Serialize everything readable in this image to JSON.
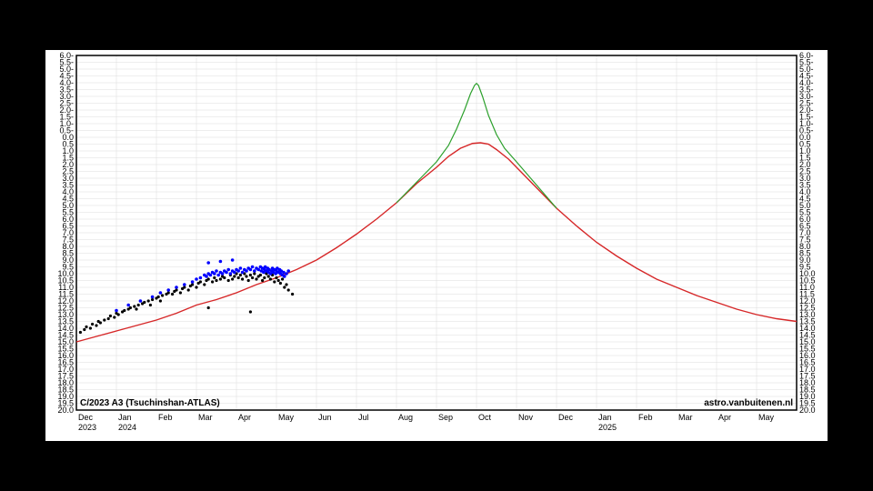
{
  "chart": {
    "type": "scatter+line",
    "title": "C/2023 A3 (Tsuchinshan-ATLAS)",
    "credit": "astro.vanbuitenen.nl",
    "background_color": "#ffffff",
    "page_background": "#000000",
    "plot_border_color": "#000000",
    "grid_color": "#dcdcdc",
    "font_family": "Arial",
    "tick_fontsize": 9,
    "footer_fontsize": 10,
    "y_axis": {
      "min": -6.0,
      "max": 20.0,
      "inverted": true,
      "tick_step": 0.5,
      "ticks": [
        -6.0,
        -5.5,
        -5.0,
        -4.5,
        -4.0,
        -3.5,
        -3.0,
        -2.5,
        -2.0,
        -1.5,
        -1.0,
        -0.5,
        0.0,
        0.5,
        1.0,
        1.5,
        2.0,
        2.5,
        3.0,
        3.5,
        4.0,
        4.5,
        5.0,
        5.5,
        6.0,
        6.5,
        7.0,
        7.5,
        8.0,
        8.5,
        9.0,
        9.5,
        10.0,
        10.5,
        11.0,
        11.5,
        12.0,
        12.5,
        13.0,
        13.5,
        14.0,
        14.5,
        15.0,
        15.5,
        16.0,
        16.5,
        17.0,
        17.5,
        18.0,
        18.5,
        19.0,
        19.5,
        20.0
      ]
    },
    "x_axis": {
      "months": [
        "Dec",
        "Jan",
        "Feb",
        "Mar",
        "Apr",
        "May",
        "Jun",
        "Jul",
        "Aug",
        "Sep",
        "Oct",
        "Nov",
        "Dec",
        "Jan",
        "Feb",
        "Mar",
        "Apr",
        "May"
      ],
      "year_labels": [
        {
          "at_month_index": 0,
          "text": "2023"
        },
        {
          "at_month_index": 1,
          "text": "2024"
        },
        {
          "at_month_index": 13,
          "text": "2025"
        }
      ]
    },
    "curves": {
      "red": {
        "color": "#d62728",
        "width": 1.4,
        "points": [
          [
            0.0,
            15.0
          ],
          [
            0.5,
            14.6
          ],
          [
            1.0,
            14.2
          ],
          [
            1.5,
            13.8
          ],
          [
            2.0,
            13.4
          ],
          [
            2.5,
            12.9
          ],
          [
            3.0,
            12.3
          ],
          [
            3.5,
            11.9
          ],
          [
            4.0,
            11.4
          ],
          [
            4.5,
            10.8
          ],
          [
            5.0,
            10.3
          ],
          [
            5.5,
            9.7
          ],
          [
            6.0,
            9.0
          ],
          [
            6.5,
            8.1
          ],
          [
            7.0,
            7.1
          ],
          [
            7.5,
            6.0
          ],
          [
            8.0,
            4.8
          ],
          [
            8.5,
            3.4
          ],
          [
            9.0,
            2.2
          ],
          [
            9.3,
            1.4
          ],
          [
            9.6,
            0.8
          ],
          [
            9.9,
            0.45
          ],
          [
            10.1,
            0.4
          ],
          [
            10.3,
            0.5
          ],
          [
            10.5,
            0.9
          ],
          [
            10.8,
            1.6
          ],
          [
            11.1,
            2.5
          ],
          [
            11.5,
            3.7
          ],
          [
            12.0,
            5.2
          ],
          [
            12.5,
            6.5
          ],
          [
            13.0,
            7.7
          ],
          [
            13.5,
            8.7
          ],
          [
            14.0,
            9.6
          ],
          [
            14.5,
            10.4
          ],
          [
            15.0,
            11.0
          ],
          [
            15.5,
            11.6
          ],
          [
            16.0,
            12.1
          ],
          [
            16.5,
            12.6
          ],
          [
            17.0,
            13.0
          ],
          [
            17.5,
            13.3
          ],
          [
            18.0,
            13.5
          ]
        ]
      },
      "green": {
        "color": "#2ca02c",
        "width": 1.2,
        "points": [
          [
            8.0,
            4.8
          ],
          [
            8.5,
            3.3
          ],
          [
            9.0,
            1.8
          ],
          [
            9.3,
            0.6
          ],
          [
            9.5,
            -0.6
          ],
          [
            9.7,
            -2.0
          ],
          [
            9.85,
            -3.2
          ],
          [
            9.95,
            -3.8
          ],
          [
            10.0,
            -3.95
          ],
          [
            10.05,
            -3.8
          ],
          [
            10.15,
            -3.0
          ],
          [
            10.3,
            -1.6
          ],
          [
            10.5,
            -0.2
          ],
          [
            10.7,
            0.8
          ],
          [
            11.0,
            1.8
          ],
          [
            11.5,
            3.5
          ],
          [
            12.0,
            5.2
          ]
        ]
      }
    },
    "scatter": {
      "black": {
        "color": "#000000",
        "size": 1.6,
        "points": [
          [
            0.1,
            14.3
          ],
          [
            0.2,
            14.1
          ],
          [
            0.25,
            13.9
          ],
          [
            0.35,
            14.0
          ],
          [
            0.4,
            13.7
          ],
          [
            0.5,
            13.8
          ],
          [
            0.55,
            13.5
          ],
          [
            0.6,
            13.6
          ],
          [
            0.7,
            13.4
          ],
          [
            0.8,
            13.3
          ],
          [
            0.85,
            13.1
          ],
          [
            0.95,
            13.2
          ],
          [
            1.0,
            12.9
          ],
          [
            1.05,
            13.0
          ],
          [
            1.15,
            12.8
          ],
          [
            1.2,
            12.7
          ],
          [
            1.3,
            12.6
          ],
          [
            1.35,
            12.5
          ],
          [
            1.45,
            12.4
          ],
          [
            1.5,
            12.6
          ],
          [
            1.55,
            12.3
          ],
          [
            1.65,
            12.2
          ],
          [
            1.7,
            12.1
          ],
          [
            1.8,
            12.0
          ],
          [
            1.85,
            12.3
          ],
          [
            1.9,
            11.9
          ],
          [
            2.0,
            11.8
          ],
          [
            2.05,
            11.7
          ],
          [
            2.1,
            12.0
          ],
          [
            2.15,
            11.6
          ],
          [
            2.25,
            11.5
          ],
          [
            2.3,
            11.4
          ],
          [
            2.4,
            11.5
          ],
          [
            2.45,
            11.3
          ],
          [
            2.5,
            11.2
          ],
          [
            2.6,
            11.4
          ],
          [
            2.65,
            11.1
          ],
          [
            2.7,
            11.0
          ],
          [
            2.8,
            11.2
          ],
          [
            2.85,
            10.9
          ],
          [
            2.9,
            10.8
          ],
          [
            3.0,
            11.0
          ],
          [
            3.05,
            10.7
          ],
          [
            3.1,
            10.6
          ],
          [
            3.2,
            10.8
          ],
          [
            3.25,
            10.5
          ],
          [
            3.3,
            10.4
          ],
          [
            3.4,
            10.6
          ],
          [
            3.45,
            10.3
          ],
          [
            3.5,
            10.5
          ],
          [
            3.6,
            10.4
          ],
          [
            3.65,
            10.2
          ],
          [
            3.7,
            10.3
          ],
          [
            3.8,
            10.5
          ],
          [
            3.85,
            10.1
          ],
          [
            3.9,
            10.4
          ],
          [
            3.95,
            10.2
          ],
          [
            4.0,
            10.0
          ],
          [
            4.05,
            10.3
          ],
          [
            4.1,
            10.1
          ],
          [
            4.15,
            10.4
          ],
          [
            4.2,
            10.0
          ],
          [
            4.25,
            10.2
          ],
          [
            4.3,
            10.5
          ],
          [
            4.35,
            10.1
          ],
          [
            4.4,
            10.3
          ],
          [
            4.45,
            10.0
          ],
          [
            4.5,
            10.4
          ],
          [
            4.55,
            10.2
          ],
          [
            4.6,
            10.1
          ],
          [
            4.65,
            10.5
          ],
          [
            4.7,
            10.3
          ],
          [
            4.75,
            10.0
          ],
          [
            4.8,
            10.2
          ],
          [
            4.85,
            10.4
          ],
          [
            4.9,
            10.1
          ],
          [
            4.95,
            10.6
          ],
          [
            5.0,
            10.3
          ],
          [
            5.05,
            10.5
          ],
          [
            5.1,
            10.7
          ],
          [
            5.15,
            10.4
          ],
          [
            5.2,
            11.0
          ],
          [
            5.25,
            10.8
          ],
          [
            5.3,
            11.2
          ],
          [
            5.4,
            11.5
          ],
          [
            3.3,
            12.5
          ],
          [
            4.35,
            12.8
          ]
        ]
      },
      "blue": {
        "color": "#0000ff",
        "size": 1.8,
        "points": [
          [
            1.0,
            12.7
          ],
          [
            1.3,
            12.3
          ],
          [
            1.6,
            12.0
          ],
          [
            1.9,
            11.7
          ],
          [
            2.1,
            11.4
          ],
          [
            2.3,
            11.2
          ],
          [
            2.5,
            11.0
          ],
          [
            2.7,
            10.8
          ],
          [
            2.9,
            10.6
          ],
          [
            3.0,
            10.4
          ],
          [
            3.1,
            10.3
          ],
          [
            3.2,
            10.1
          ],
          [
            3.25,
            10.2
          ],
          [
            3.3,
            10.0
          ],
          [
            3.35,
            10.1
          ],
          [
            3.4,
            9.9
          ],
          [
            3.45,
            10.0
          ],
          [
            3.5,
            9.8
          ],
          [
            3.55,
            10.1
          ],
          [
            3.6,
            9.9
          ],
          [
            3.65,
            10.0
          ],
          [
            3.7,
            9.8
          ],
          [
            3.75,
            9.9
          ],
          [
            3.8,
            9.7
          ],
          [
            3.85,
            10.0
          ],
          [
            3.9,
            9.8
          ],
          [
            3.95,
            9.9
          ],
          [
            4.0,
            9.7
          ],
          [
            4.05,
            9.8
          ],
          [
            4.1,
            9.6
          ],
          [
            4.15,
            9.9
          ],
          [
            4.2,
            9.7
          ],
          [
            4.25,
            9.8
          ],
          [
            4.3,
            9.6
          ],
          [
            4.35,
            9.7
          ],
          [
            4.4,
            9.5
          ],
          [
            4.45,
            9.8
          ],
          [
            4.5,
            9.6
          ],
          [
            4.55,
            9.7
          ],
          [
            4.6,
            9.5
          ],
          [
            4.62,
            9.8
          ],
          [
            4.65,
            9.6
          ],
          [
            4.68,
            9.9
          ],
          [
            4.7,
            9.7
          ],
          [
            4.72,
            9.5
          ],
          [
            4.75,
            9.8
          ],
          [
            4.78,
            9.6
          ],
          [
            4.8,
            9.9
          ],
          [
            4.82,
            9.7
          ],
          [
            4.85,
            10.0
          ],
          [
            4.88,
            9.8
          ],
          [
            4.9,
            9.6
          ],
          [
            4.92,
            9.9
          ],
          [
            4.95,
            9.7
          ],
          [
            4.98,
            10.0
          ],
          [
            5.0,
            9.8
          ],
          [
            5.02,
            9.6
          ],
          [
            5.05,
            9.9
          ],
          [
            5.08,
            9.7
          ],
          [
            5.1,
            10.0
          ],
          [
            5.12,
            9.8
          ],
          [
            5.15,
            10.1
          ],
          [
            5.18,
            9.9
          ],
          [
            5.2,
            10.2
          ],
          [
            5.25,
            10.0
          ],
          [
            5.3,
            9.8
          ],
          [
            3.3,
            9.2
          ],
          [
            3.6,
            9.1
          ],
          [
            3.9,
            9.0
          ]
        ]
      }
    }
  }
}
